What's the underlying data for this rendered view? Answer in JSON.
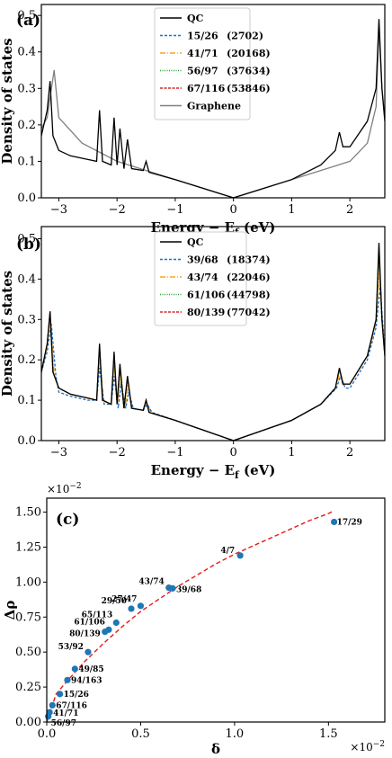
{
  "chart_data": [
    {
      "type": "line",
      "panel_label": "(a)",
      "xlabel": "Energy − E",
      "xlabel_sub": "f",
      "xlabel_unit": " (eV)",
      "ylabel": "Density of states",
      "xlim": [
        -3.3,
        2.6
      ],
      "ylim": [
        0,
        0.53
      ],
      "xticks": [
        -3,
        -2,
        -1,
        0,
        1,
        2
      ],
      "yticks": [
        0.0,
        0.1,
        0.2,
        0.3,
        0.4,
        0.5
      ],
      "legend_position": "top-center",
      "series": [
        {
          "name": "QC",
          "count": "",
          "color": "#000000",
          "dash": "solid",
          "x": [
            -3.3,
            -3.2,
            -3.15,
            -3.1,
            -3.0,
            -2.8,
            -2.5,
            -2.35,
            -2.3,
            -2.25,
            -2.1,
            -2.05,
            -2.0,
            -1.95,
            -1.88,
            -1.82,
            -1.75,
            -1.55,
            -1.5,
            -1.45,
            -1.0,
            -0.5,
            0.0,
            0.5,
            1.0,
            1.5,
            1.75,
            1.82,
            1.88,
            2.0,
            2.3,
            2.45,
            2.5,
            2.55,
            2.6
          ],
          "y": [
            0.17,
            0.24,
            0.32,
            0.17,
            0.13,
            0.115,
            0.105,
            0.1,
            0.24,
            0.1,
            0.09,
            0.22,
            0.09,
            0.19,
            0.08,
            0.16,
            0.08,
            0.075,
            0.1,
            0.07,
            0.05,
            0.025,
            0.0,
            0.025,
            0.05,
            0.09,
            0.13,
            0.18,
            0.14,
            0.14,
            0.21,
            0.3,
            0.49,
            0.3,
            0.21
          ]
        },
        {
          "name": "15/26",
          "count": "(2702)",
          "color": "#1f6fbf",
          "dash": "3,2",
          "x": [],
          "y": []
        },
        {
          "name": "41/71",
          "count": "(20168)",
          "color": "#f5a623",
          "dash": "6,2,1,2",
          "x": [],
          "y": []
        },
        {
          "name": "56/97",
          "count": "(37634)",
          "color": "#2ca02c",
          "dash": "1,1.5",
          "x": [],
          "y": []
        },
        {
          "name": "67/116",
          "count": "(53846)",
          "color": "#d62728",
          "dash": "3,1.5",
          "x": [],
          "y": []
        },
        {
          "name": "Graphene",
          "count": "",
          "color": "#808080",
          "dash": "solid",
          "x": [
            -3.3,
            -3.2,
            -3.08,
            -3.0,
            -2.6,
            -2.0,
            -1.5,
            -1.0,
            -0.5,
            0.0,
            0.5,
            1.0,
            1.5,
            2.0,
            2.3,
            2.45,
            2.5,
            2.55,
            2.6
          ],
          "y": [
            0.19,
            0.22,
            0.35,
            0.22,
            0.15,
            0.1,
            0.075,
            0.05,
            0.025,
            0.0,
            0.025,
            0.05,
            0.075,
            0.1,
            0.15,
            0.25,
            0.46,
            0.3,
            0.22
          ]
        }
      ]
    },
    {
      "type": "line",
      "panel_label": "(b)",
      "xlabel": "Energy − E",
      "xlabel_sub": "f",
      "xlabel_unit": " (eV)",
      "ylabel": "Density of states",
      "xlim": [
        -3.3,
        2.6
      ],
      "ylim": [
        0,
        0.53
      ],
      "xticks": [
        -3,
        -2,
        -1,
        0,
        1,
        2
      ],
      "yticks": [
        0.0,
        0.1,
        0.2,
        0.3,
        0.4,
        0.5
      ],
      "legend_position": "top-center",
      "series": [
        {
          "name": "QC",
          "count": "",
          "color": "#000000",
          "dash": "solid",
          "x": [
            -3.3,
            -3.2,
            -3.15,
            -3.1,
            -3.0,
            -2.8,
            -2.5,
            -2.35,
            -2.3,
            -2.25,
            -2.1,
            -2.05,
            -2.0,
            -1.95,
            -1.88,
            -1.82,
            -1.75,
            -1.55,
            -1.5,
            -1.45,
            -1.0,
            -0.5,
            0.0,
            0.5,
            1.0,
            1.5,
            1.75,
            1.82,
            1.88,
            2.0,
            2.3,
            2.45,
            2.5,
            2.55,
            2.6
          ],
          "y": [
            0.17,
            0.24,
            0.32,
            0.17,
            0.13,
            0.115,
            0.105,
            0.1,
            0.24,
            0.1,
            0.09,
            0.22,
            0.09,
            0.19,
            0.08,
            0.16,
            0.08,
            0.075,
            0.1,
            0.07,
            0.05,
            0.025,
            0.0,
            0.025,
            0.05,
            0.09,
            0.13,
            0.18,
            0.14,
            0.14,
            0.21,
            0.3,
            0.49,
            0.3,
            0.21
          ]
        },
        {
          "name": "39/68",
          "count": "(18374)",
          "color": "#1f6fbf",
          "dash": "3,2",
          "x": [
            -3.3,
            -3.2,
            -3.13,
            -3.05,
            -3.0,
            -2.8,
            -2.5,
            -2.35,
            -2.3,
            -2.22,
            -2.1,
            -2.05,
            -1.98,
            -1.93,
            -1.85,
            -1.8,
            -1.72,
            -1.55,
            -1.48,
            -1.4,
            -1.0,
            -0.5,
            0.0,
            0.5,
            1.0,
            1.5,
            1.77,
            1.84,
            1.92,
            2.0,
            2.3,
            2.45,
            2.52,
            2.57,
            2.6
          ],
          "y": [
            0.17,
            0.22,
            0.29,
            0.16,
            0.12,
            0.11,
            0.1,
            0.1,
            0.18,
            0.09,
            0.09,
            0.16,
            0.08,
            0.14,
            0.08,
            0.12,
            0.08,
            0.075,
            0.09,
            0.07,
            0.05,
            0.025,
            0.0,
            0.025,
            0.05,
            0.09,
            0.13,
            0.16,
            0.13,
            0.13,
            0.2,
            0.28,
            0.38,
            0.28,
            0.22
          ]
        },
        {
          "name": "43/74",
          "count": "(22046)",
          "color": "#f5a623",
          "dash": "6,2,1,2",
          "x": [
            -3.3,
            -3.2,
            -3.15,
            -3.08,
            -3.0,
            -2.8,
            -2.5,
            -2.35,
            -2.3,
            -2.23,
            -2.1,
            -2.05,
            -1.99,
            -1.94,
            -1.86,
            -1.81,
            -1.74,
            -1.55,
            -1.49,
            -1.42,
            -1.0,
            -0.5,
            0.0,
            0.5,
            1.0,
            1.5,
            1.76,
            1.83,
            1.9,
            2.0,
            2.3,
            2.45,
            2.51,
            2.56,
            2.6
          ],
          "y": [
            0.17,
            0.23,
            0.31,
            0.17,
            0.13,
            0.115,
            0.105,
            0.1,
            0.21,
            0.1,
            0.09,
            0.19,
            0.09,
            0.16,
            0.08,
            0.14,
            0.08,
            0.075,
            0.095,
            0.07,
            0.05,
            0.025,
            0.0,
            0.025,
            0.05,
            0.09,
            0.13,
            0.17,
            0.14,
            0.14,
            0.21,
            0.29,
            0.42,
            0.29,
            0.21
          ]
        },
        {
          "name": "61/106",
          "count": "(44798)",
          "color": "#2ca02c",
          "dash": "1,1.5",
          "x": [
            -3.3,
            -3.2,
            -3.15,
            -3.1,
            -3.0,
            -2.8,
            -2.5,
            -2.35,
            -2.3,
            -2.25,
            -2.1,
            -2.05,
            -2.0,
            -1.95,
            -1.88,
            -1.82,
            -1.75,
            -1.55,
            -1.5,
            -1.45,
            -1.0,
            -0.5,
            0.0,
            0.5,
            1.0,
            1.5,
            1.75,
            1.82,
            1.88,
            2.0,
            2.3,
            2.45,
            2.5,
            2.55,
            2.6
          ],
          "y": [
            0.17,
            0.24,
            0.31,
            0.17,
            0.13,
            0.115,
            0.105,
            0.1,
            0.22,
            0.1,
            0.09,
            0.2,
            0.09,
            0.17,
            0.08,
            0.15,
            0.08,
            0.075,
            0.1,
            0.07,
            0.05,
            0.025,
            0.0,
            0.025,
            0.05,
            0.09,
            0.13,
            0.175,
            0.14,
            0.14,
            0.21,
            0.3,
            0.44,
            0.3,
            0.21
          ]
        },
        {
          "name": "80/139",
          "count": "(77042)",
          "color": "#d62728",
          "dash": "3,1.5",
          "x": [
            -3.3,
            -3.2,
            -3.15,
            -3.1,
            -3.0,
            -2.8,
            -2.5,
            -2.35,
            -2.3,
            -2.25,
            -2.1,
            -2.05,
            -2.0,
            -1.95,
            -1.88,
            -1.82,
            -1.75,
            -1.55,
            -1.5,
            -1.45,
            -1.0,
            -0.5,
            0.0,
            0.5,
            1.0,
            1.5,
            1.75,
            1.82,
            1.88,
            2.0,
            2.3,
            2.45,
            2.5,
            2.55,
            2.6
          ],
          "y": [
            0.17,
            0.24,
            0.32,
            0.17,
            0.13,
            0.115,
            0.105,
            0.1,
            0.23,
            0.1,
            0.09,
            0.21,
            0.09,
            0.18,
            0.08,
            0.155,
            0.08,
            0.075,
            0.1,
            0.07,
            0.05,
            0.025,
            0.0,
            0.025,
            0.05,
            0.09,
            0.13,
            0.178,
            0.14,
            0.14,
            0.21,
            0.3,
            0.46,
            0.3,
            0.21
          ]
        }
      ]
    },
    {
      "type": "scatter",
      "panel_label": "(c)",
      "xlabel": "δ",
      "ylabel": "Δρ",
      "x_multiplier": "×10",
      "x_multiplier_exp": "−2",
      "y_multiplier": "×10",
      "y_multiplier_exp": "−2",
      "xlim": [
        0,
        1.8
      ],
      "ylim": [
        0,
        1.6
      ],
      "xticks": [
        "0.0",
        "0.5",
        "1.0",
        "1.5"
      ],
      "yticks": [
        "0.00",
        "0.25",
        "0.50",
        "0.75",
        "1.00",
        "1.25",
        "1.50"
      ],
      "point_color": "#1f77b4",
      "fit_color": "#e31a1c",
      "fit": {
        "x": [
          0.0,
          0.05,
          0.1,
          0.2,
          0.3,
          0.4,
          0.5,
          0.6,
          0.7,
          0.8,
          0.9,
          1.0,
          1.1,
          1.2,
          1.3,
          1.4,
          1.5,
          1.53
        ],
        "y": [
          0.0,
          0.2,
          0.28,
          0.43,
          0.56,
          0.68,
          0.79,
          0.88,
          0.97,
          1.05,
          1.13,
          1.2,
          1.26,
          1.32,
          1.38,
          1.44,
          1.49,
          1.51
        ]
      },
      "points": [
        {
          "label": "17/29",
          "x": 1.53,
          "y": 1.43
        },
        {
          "label": "4/7",
          "x": 1.03,
          "y": 1.19
        },
        {
          "label": "43/74",
          "x": 0.65,
          "y": 0.96
        },
        {
          "label": "39/68",
          "x": 0.67,
          "y": 0.955
        },
        {
          "label": "27/47",
          "x": 0.5,
          "y": 0.83
        },
        {
          "label": "29/50",
          "x": 0.45,
          "y": 0.81
        },
        {
          "label": "65/113",
          "x": 0.37,
          "y": 0.71
        },
        {
          "label": "61/106",
          "x": 0.33,
          "y": 0.66
        },
        {
          "label": "80/139",
          "x": 0.31,
          "y": 0.645
        },
        {
          "label": "53/92",
          "x": 0.22,
          "y": 0.5
        },
        {
          "label": "49/85",
          "x": 0.15,
          "y": 0.38
        },
        {
          "label": "94/163",
          "x": 0.11,
          "y": 0.3
        },
        {
          "label": "15/26",
          "x": 0.07,
          "y": 0.2
        },
        {
          "label": "67/116",
          "x": 0.03,
          "y": 0.12
        },
        {
          "label": "41/71",
          "x": 0.015,
          "y": 0.07
        },
        {
          "label": "56/97",
          "x": 0.008,
          "y": 0.04
        }
      ]
    }
  ]
}
